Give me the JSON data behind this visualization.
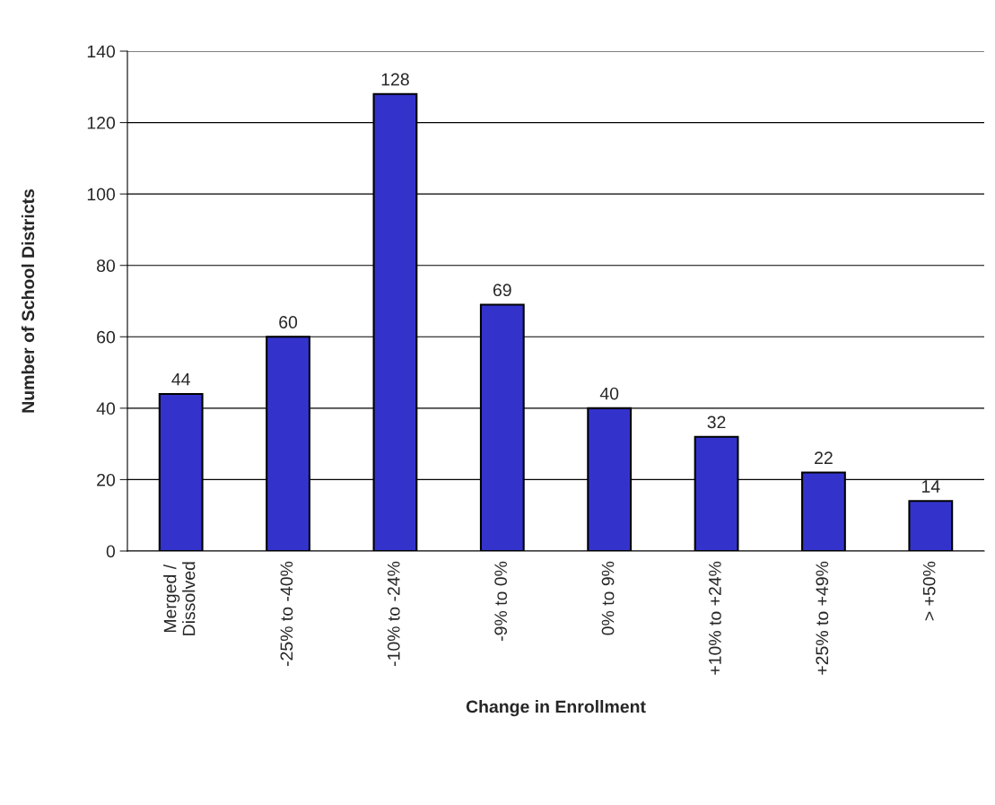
{
  "chart_data": {
    "type": "bar",
    "xlabel": "Change in Enrollment",
    "ylabel": "Number of School Districts",
    "categories": [
      "Merged /\nDissolved",
      "-25% to -40%",
      "-10% to -24%",
      "-9% to 0%",
      "0% to 9%",
      "+10% to +24%",
      "+25% to +49%",
      "> +50%"
    ],
    "values": [
      44,
      60,
      128,
      69,
      40,
      32,
      22,
      14
    ],
    "color": "#3333cc",
    "ylim": [
      0,
      140
    ],
    "yticks": [
      0,
      20,
      40,
      60,
      80,
      100,
      120,
      140
    ],
    "grid": "y",
    "data_labels": true
  }
}
